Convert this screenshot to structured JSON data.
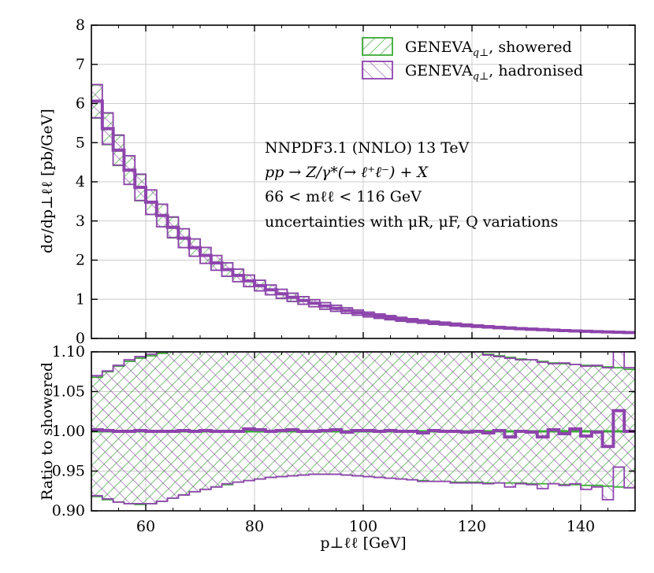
{
  "chart_data": [
    {
      "type": "line",
      "panel": "main",
      "style": "step histogram with hatched uncertainty bands",
      "xlabel": "p⊥ℓℓ [GeV]",
      "ylabel": "dσ/dp⊥ℓℓ [pb/GeV]",
      "xlim": [
        50,
        150
      ],
      "ylim": [
        0,
        8
      ],
      "xticks": [
        "60",
        "80",
        "100",
        "120",
        "140"
      ],
      "yticks": [
        "0",
        "1",
        "2",
        "3",
        "4",
        "5",
        "6",
        "7",
        "8"
      ],
      "grid": true,
      "legend_position": "top-right",
      "bin_edges": [
        50,
        52,
        54,
        56,
        58,
        60,
        62,
        64,
        66,
        68,
        70,
        72,
        74,
        76,
        78,
        80,
        82,
        84,
        86,
        88,
        90,
        92,
        94,
        96,
        98,
        100,
        102,
        104,
        106,
        108,
        110,
        112,
        114,
        116,
        118,
        120,
        122,
        124,
        126,
        128,
        130,
        132,
        134,
        136,
        138,
        140,
        142,
        144,
        146,
        148,
        150
      ],
      "series": [
        {
          "name": "GENEVA_q⊥, showered",
          "color": "#3aaa35",
          "values": [
            6.05,
            5.35,
            4.8,
            4.3,
            3.85,
            3.48,
            3.14,
            2.83,
            2.56,
            2.32,
            2.12,
            1.93,
            1.76,
            1.61,
            1.47,
            1.35,
            1.24,
            1.14,
            1.05,
            0.97,
            0.9,
            0.83,
            0.77,
            0.71,
            0.66,
            0.61,
            0.57,
            0.53,
            0.49,
            0.46,
            0.43,
            0.4,
            0.38,
            0.355,
            0.335,
            0.315,
            0.297,
            0.28,
            0.265,
            0.25,
            0.237,
            0.225,
            0.213,
            0.202,
            0.192,
            0.183,
            0.174,
            0.166,
            0.158,
            0.151
          ],
          "band_rel": [
            0.07,
            0.075,
            0.08,
            0.085,
            0.087,
            0.09,
            0.092,
            0.093,
            0.094,
            0.095,
            0.096,
            0.097,
            0.098,
            0.099,
            0.1,
            0.1,
            0.1,
            0.1,
            0.1,
            0.1,
            0.1,
            0.1,
            0.1,
            0.1,
            0.1,
            0.1,
            0.1,
            0.1,
            0.1,
            0.099,
            0.098,
            0.097,
            0.096,
            0.096,
            0.095,
            0.094,
            0.093,
            0.092,
            0.09,
            0.089,
            0.088,
            0.087,
            0.086,
            0.085,
            0.084,
            0.083,
            0.082,
            0.081,
            0.08,
            0.078
          ]
        },
        {
          "name": "GENEVA_q⊥, hadronised",
          "color": "#8e44ad",
          "values": [
            6.06,
            5.36,
            4.81,
            4.3,
            3.86,
            3.48,
            3.14,
            2.84,
            2.56,
            2.32,
            2.12,
            1.93,
            1.76,
            1.61,
            1.47,
            1.35,
            1.24,
            1.14,
            1.05,
            0.97,
            0.9,
            0.83,
            0.77,
            0.71,
            0.66,
            0.61,
            0.57,
            0.53,
            0.49,
            0.46,
            0.43,
            0.4,
            0.38,
            0.355,
            0.335,
            0.315,
            0.297,
            0.28,
            0.265,
            0.25,
            0.237,
            0.225,
            0.213,
            0.202,
            0.192,
            0.183,
            0.174,
            0.166,
            0.158,
            0.151
          ],
          "band_rel": [
            0.07,
            0.075,
            0.08,
            0.085,
            0.087,
            0.09,
            0.092,
            0.093,
            0.094,
            0.095,
            0.096,
            0.097,
            0.098,
            0.099,
            0.1,
            0.1,
            0.1,
            0.1,
            0.1,
            0.1,
            0.1,
            0.1,
            0.1,
            0.1,
            0.1,
            0.1,
            0.1,
            0.1,
            0.1,
            0.099,
            0.098,
            0.097,
            0.096,
            0.096,
            0.095,
            0.094,
            0.093,
            0.092,
            0.09,
            0.089,
            0.088,
            0.087,
            0.086,
            0.085,
            0.084,
            0.083,
            0.082,
            0.081,
            0.08,
            0.078
          ]
        }
      ]
    },
    {
      "type": "line",
      "panel": "ratio",
      "style": "step histogram with hatched uncertainty bands",
      "xlabel": "p⊥ℓℓ [GeV]",
      "ylabel": "Ratio to showered",
      "xlim": [
        50,
        150
      ],
      "ylim": [
        0.9,
        1.1
      ],
      "xticks": [
        "60",
        "80",
        "100",
        "120",
        "140"
      ],
      "yticks": [
        "0.90",
        "0.95",
        "1.00",
        "1.05",
        "1.10"
      ],
      "grid": true,
      "bin_edges": [
        50,
        52,
        54,
        56,
        58,
        60,
        62,
        64,
        66,
        68,
        70,
        72,
        74,
        76,
        78,
        80,
        82,
        84,
        86,
        88,
        90,
        92,
        94,
        96,
        98,
        100,
        102,
        104,
        106,
        108,
        110,
        112,
        114,
        116,
        118,
        120,
        122,
        124,
        126,
        128,
        130,
        132,
        134,
        136,
        138,
        140,
        142,
        144,
        146,
        148,
        150
      ],
      "series": [
        {
          "name": "GENEVA_q⊥, showered",
          "color": "#3aaa35",
          "center": [
            1.0,
            1.0,
            1.0,
            1.0,
            1.0,
            1.0,
            1.0,
            1.0,
            1.0,
            1.0,
            1.0,
            1.0,
            1.0,
            1.0,
            1.0,
            1.0,
            1.0,
            1.0,
            1.0,
            1.0,
            1.0,
            1.0,
            1.0,
            1.0,
            1.0,
            1.0,
            1.0,
            1.0,
            1.0,
            1.0,
            1.0,
            1.0,
            1.0,
            1.0,
            1.0,
            1.0,
            1.0,
            1.0,
            1.0,
            1.0,
            1.0,
            1.0,
            1.0,
            1.0,
            1.0,
            1.0,
            1.0,
            1.0,
            1.0,
            1.0
          ],
          "upper": [
            1.068,
            1.075,
            1.082,
            1.088,
            1.092,
            1.095,
            1.098,
            1.1,
            1.1,
            1.1,
            1.1,
            1.1,
            1.1,
            1.1,
            1.1,
            1.1,
            1.1,
            1.1,
            1.1,
            1.1,
            1.1,
            1.1,
            1.1,
            1.1,
            1.1,
            1.1,
            1.1,
            1.1,
            1.1,
            1.1,
            1.1,
            1.1,
            1.1,
            1.1,
            1.1,
            1.1,
            1.097,
            1.095,
            1.093,
            1.091,
            1.09,
            1.088,
            1.086,
            1.085,
            1.084,
            1.083,
            1.082,
            1.081,
            1.08,
            1.078
          ],
          "lower": [
            0.918,
            0.914,
            0.911,
            0.909,
            0.908,
            0.909,
            0.912,
            0.916,
            0.92,
            0.924,
            0.927,
            0.93,
            0.933,
            0.936,
            0.938,
            0.94,
            0.942,
            0.943,
            0.944,
            0.945,
            0.946,
            0.946,
            0.946,
            0.945,
            0.944,
            0.943,
            0.942,
            0.941,
            0.94,
            0.939,
            0.938,
            0.937,
            0.937,
            0.936,
            0.936,
            0.936,
            0.935,
            0.935,
            0.935,
            0.935,
            0.934,
            0.934,
            0.934,
            0.933,
            0.933,
            0.932,
            0.932,
            0.931,
            0.93,
            0.929
          ]
        },
        {
          "name": "GENEVA_q⊥, hadronised",
          "color": "#8e44ad",
          "center": [
            1.002,
            1.001,
            1.0,
            1.0,
            1.001,
            1.0,
            1.0,
            1.0,
            1.001,
            1.0,
            1.001,
            1.0,
            1.0,
            1.0,
            1.003,
            1.002,
            1.0,
            1.001,
            1.002,
            1.0,
            1.0,
            1.001,
            1.002,
            0.999,
            1.001,
            1.001,
            1.0,
            1.001,
            1.0,
            1.0,
            0.998,
            1.001,
            1.0,
            1.0,
            0.999,
            1.0,
            0.998,
            1.001,
            0.993,
            1.0,
            0.999,
            0.993,
            1.002,
            0.997,
            1.003,
            0.994,
            0.999,
            0.981,
            1.026,
            1.0
          ],
          "upper": [
            1.07,
            1.076,
            1.083,
            1.09,
            1.094,
            1.097,
            1.1,
            1.1,
            1.1,
            1.1,
            1.1,
            1.1,
            1.1,
            1.1,
            1.1,
            1.1,
            1.1,
            1.1,
            1.1,
            1.1,
            1.1,
            1.1,
            1.1,
            1.1,
            1.1,
            1.1,
            1.1,
            1.1,
            1.1,
            1.1,
            1.1,
            1.1,
            1.1,
            1.1,
            1.1,
            1.1,
            1.096,
            1.094,
            1.092,
            1.09,
            1.09,
            1.087,
            1.085,
            1.086,
            1.084,
            1.082,
            1.083,
            1.08,
            1.1,
            1.08
          ],
          "lower": [
            0.919,
            0.915,
            0.911,
            0.909,
            0.909,
            0.909,
            0.912,
            0.916,
            0.92,
            0.924,
            0.927,
            0.93,
            0.934,
            0.936,
            0.938,
            0.94,
            0.942,
            0.943,
            0.944,
            0.945,
            0.946,
            0.946,
            0.946,
            0.945,
            0.944,
            0.943,
            0.942,
            0.941,
            0.94,
            0.939,
            0.937,
            0.937,
            0.937,
            0.935,
            0.935,
            0.935,
            0.934,
            0.935,
            0.93,
            0.934,
            0.933,
            0.928,
            0.934,
            0.932,
            0.934,
            0.927,
            0.93,
            0.914,
            0.955,
            0.929
          ]
        }
      ]
    }
  ],
  "annotations": [
    "NNPDF3.1 (NNLO) 13 TeV",
    "pp → Z/γ*(→ ℓ⁺ℓ⁻) + X",
    "66 < mℓℓ < 116 GeV",
    "uncertainties with μR, μF, Q variations"
  ],
  "legend": [
    {
      "label": "GENEVA",
      "sub": "q⊥",
      "suffix": ", showered",
      "color": "#3aaa35"
    },
    {
      "label": "GENEVA",
      "sub": "q⊥",
      "suffix": ", hadronised",
      "color": "#8e44ad"
    }
  ],
  "colors": {
    "grid": "#cccccc",
    "axis": "#000000",
    "showered": "#3aaa35",
    "hadronised": "#8e44ad"
  }
}
